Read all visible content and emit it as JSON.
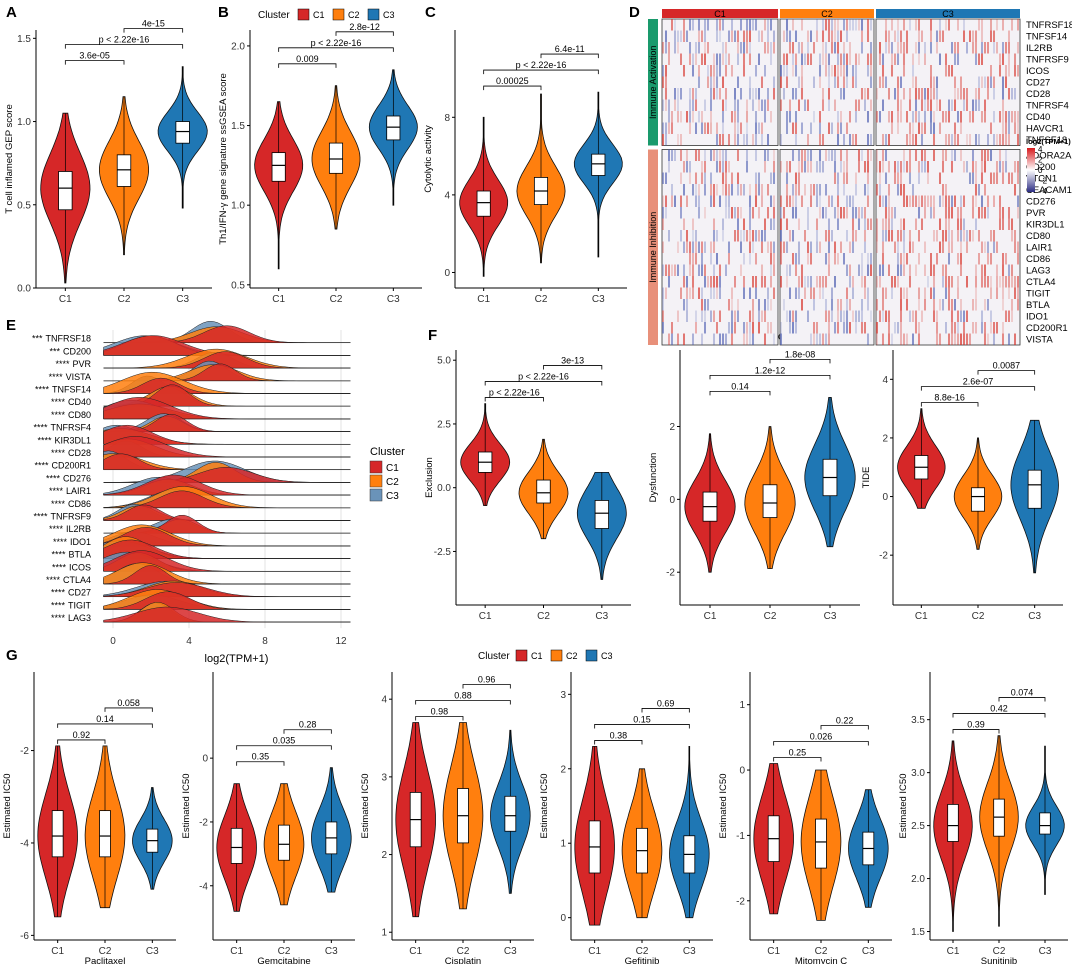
{
  "colors": {
    "C1": "#d62728",
    "C2": "#ff7f0e",
    "C3": "#1f77b4"
  },
  "legend": {
    "title": "Cluster",
    "items": [
      "C1",
      "C2",
      "C3"
    ]
  },
  "panel_labels": {
    "A": "A",
    "B": "B",
    "C": "C",
    "D": "D",
    "E": "E",
    "F": "F",
    "G": "G"
  },
  "chart_data": [
    {
      "panel": "A",
      "type": "violin",
      "ylabel": "T cell inflamed GEP score",
      "ylim": [
        0,
        1.55
      ],
      "yticks": [
        "0.0",
        "0.5",
        "1.0",
        "1.5"
      ],
      "ytick_values": [
        0,
        0.5,
        1,
        1.5
      ],
      "categories": [
        "C1",
        "C2",
        "C3"
      ],
      "groups": [
        {
          "name": "C1",
          "median": 0.6,
          "q1": 0.47,
          "q3": 0.7,
          "min": 0.03,
          "max": 1.05
        },
        {
          "name": "C2",
          "median": 0.71,
          "q1": 0.61,
          "q3": 0.8,
          "min": 0.2,
          "max": 1.15
        },
        {
          "name": "C3",
          "median": 0.94,
          "q1": 0.87,
          "q3": 1.0,
          "min": 0.48,
          "max": 1.33
        }
      ],
      "comparisons": [
        {
          "pair": [
            "C1",
            "C2"
          ],
          "label": "3.6e-05"
        },
        {
          "pair": [
            "C1",
            "C3"
          ],
          "label": "p < 2.22e-16"
        },
        {
          "pair": [
            "C2",
            "C3"
          ],
          "label": "4e-15"
        }
      ]
    },
    {
      "panel": "B",
      "type": "violin",
      "ylabel": "Th1/IFN-γ gene signature ssGSEA score",
      "ylim": [
        0.48,
        2.1
      ],
      "yticks": [
        "0.5",
        "1.0",
        "1.5",
        "2.0"
      ],
      "ytick_values": [
        0.5,
        1,
        1.5,
        2
      ],
      "categories": [
        "C1",
        "C2",
        "C3"
      ],
      "groups": [
        {
          "name": "C1",
          "median": 1.25,
          "q1": 1.15,
          "q3": 1.33,
          "min": 0.6,
          "max": 1.65
        },
        {
          "name": "C2",
          "median": 1.29,
          "q1": 1.2,
          "q3": 1.39,
          "min": 0.85,
          "max": 1.75
        },
        {
          "name": "C3",
          "median": 1.49,
          "q1": 1.41,
          "q3": 1.56,
          "min": 1.0,
          "max": 1.85
        }
      ],
      "comparisons": [
        {
          "pair": [
            "C1",
            "C2"
          ],
          "label": "0.009"
        },
        {
          "pair": [
            "C1",
            "C3"
          ],
          "label": "p < 2.22e-16"
        },
        {
          "pair": [
            "C2",
            "C3"
          ],
          "label": "2.8e-12"
        }
      ]
    },
    {
      "panel": "C",
      "type": "violin",
      "ylabel": "Cytolytic activity",
      "ylim": [
        -0.8,
        12.5
      ],
      "yticks": [
        "0",
        "4",
        "8"
      ],
      "ytick_values": [
        0,
        4,
        8
      ],
      "categories": [
        "C1",
        "C2",
        "C3"
      ],
      "groups": [
        {
          "name": "C1",
          "median": 3.6,
          "q1": 2.9,
          "q3": 4.2,
          "min": -0.2,
          "max": 8.0
        },
        {
          "name": "C2",
          "median": 4.2,
          "q1": 3.5,
          "q3": 4.9,
          "min": 0.5,
          "max": 9.2
        },
        {
          "name": "C3",
          "median": 5.6,
          "q1": 5.0,
          "q3": 6.1,
          "min": 0.8,
          "max": 9.3
        }
      ],
      "comparisons": [
        {
          "pair": [
            "C1",
            "C2"
          ],
          "label": "0.00025"
        },
        {
          "pair": [
            "C1",
            "C3"
          ],
          "label": "p < 2.22e-16"
        },
        {
          "pair": [
            "C2",
            "C3"
          ],
          "label": "6.4e-11"
        }
      ]
    },
    {
      "panel": "D",
      "type": "heatmap",
      "columns": [
        "C1",
        "C2",
        "C3"
      ],
      "row_groups": [
        {
          "name": "Immune Activation",
          "color": "#1a9a6c",
          "genes": [
            "TNFRSF18",
            "TNFSF14",
            "IL2RB",
            "TNFRSF9",
            "ICOS",
            "CD27",
            "CD28",
            "TNFRSF4",
            "CD40",
            "HAVCR1",
            "TNFSF18"
          ]
        },
        {
          "name": "Immune Inhibition",
          "color": "#e8907a",
          "genes": [
            "ADORA2A",
            "CD200",
            "VTCN1",
            "CEACAM1",
            "CD276",
            "PVR",
            "KIR3DL1",
            "CD80",
            "LAIR1",
            "CD86",
            "LAG3",
            "CTLA4",
            "TIGIT",
            "BTLA",
            "IDO1",
            "CD200R1",
            "VISTA"
          ]
        }
      ],
      "legend_title": "log2(TPM+1)",
      "legend_ticks": [
        "4",
        "2",
        "0",
        "−2",
        "−4"
      ]
    },
    {
      "panel": "E",
      "type": "ridgeline",
      "xlabel": "log2(TPM+1)",
      "xticks": [
        "0",
        "4",
        "8",
        "12"
      ],
      "xtick_values": [
        0,
        4,
        8,
        12
      ],
      "xlim": [
        -1,
        13
      ],
      "rows": [
        {
          "sig": "***",
          "gene": "TNFRSF18",
          "peak": 5.5
        },
        {
          "sig": "***",
          "gene": "CD200",
          "peak": 2.0
        },
        {
          "sig": "****",
          "gene": "PVR",
          "peak": 5.5
        },
        {
          "sig": "****",
          "gene": "VISTA",
          "peak": 5.3
        },
        {
          "sig": "****",
          "gene": "TNFSF14",
          "peak": 2.2
        },
        {
          "sig": "****",
          "gene": "CD40",
          "peak": 3.0
        },
        {
          "sig": "****",
          "gene": "CD80",
          "peak": 1.2
        },
        {
          "sig": "****",
          "gene": "TNFRSF4",
          "peak": 2.8
        },
        {
          "sig": "****",
          "gene": "KIR3DL1",
          "peak": 0.3
        },
        {
          "sig": "****",
          "gene": "CD28",
          "peak": 0.8
        },
        {
          "sig": "****",
          "gene": "CD200R1",
          "peak": 0.2
        },
        {
          "sig": "****",
          "gene": "CD276",
          "peak": 5.5
        },
        {
          "sig": "****",
          "gene": "LAIR1",
          "peak": 2.8
        },
        {
          "sig": "****",
          "gene": "CD86",
          "peak": 3.5
        },
        {
          "sig": "****",
          "gene": "TNFRSF9",
          "peak": 1.5
        },
        {
          "sig": "****",
          "gene": "IL2RB",
          "peak": 3.5
        },
        {
          "sig": "****",
          "gene": "IDO1",
          "peak": 1.5
        },
        {
          "sig": "****",
          "gene": "BTLA",
          "peak": 0.8
        },
        {
          "sig": "****",
          "gene": "ICOS",
          "peak": 1.2
        },
        {
          "sig": "****",
          "gene": "CTLA4",
          "peak": 1.5
        },
        {
          "sig": "****",
          "gene": "CD27",
          "peak": 3.0
        },
        {
          "sig": "****",
          "gene": "TIGIT",
          "peak": 2.5
        },
        {
          "sig": "****",
          "gene": "LAG3",
          "peak": 2.5
        }
      ]
    },
    {
      "panel": "F1",
      "type": "violin",
      "ylabel": "Exclusion",
      "ylim": [
        -4.6,
        5.4
      ],
      "yticks": [
        "-2.5",
        "0.0",
        "2.5",
        "5.0"
      ],
      "ytick_values": [
        -2.5,
        0,
        2.5,
        5
      ],
      "categories": [
        "C1",
        "C2",
        "C3"
      ],
      "groups": [
        {
          "name": "C1",
          "median": 1.0,
          "q1": 0.6,
          "q3": 1.4,
          "min": -0.7,
          "max": 3.3
        },
        {
          "name": "C2",
          "median": -0.2,
          "q1": -0.6,
          "q3": 0.3,
          "min": -2.0,
          "max": 1.9
        },
        {
          "name": "C3",
          "median": -1.0,
          "q1": -1.6,
          "q3": -0.5,
          "min": -3.6,
          "max": 0.6
        }
      ],
      "comparisons": [
        {
          "pair": [
            "C1",
            "C2"
          ],
          "label": "p < 2.22e-16"
        },
        {
          "pair": [
            "C1",
            "C3"
          ],
          "label": "p < 2.22e-16"
        },
        {
          "pair": [
            "C2",
            "C3"
          ],
          "label": "3e-13"
        }
      ]
    },
    {
      "panel": "F2",
      "type": "violin",
      "ylabel": "Dysfunction",
      "ylim": [
        -2.9,
        4.1
      ],
      "yticks": [
        "-2",
        "0",
        "2"
      ],
      "ytick_values": [
        -2,
        0,
        2
      ],
      "categories": [
        "C1",
        "C2",
        "C3"
      ],
      "groups": [
        {
          "name": "C1",
          "median": -0.2,
          "q1": -0.6,
          "q3": 0.2,
          "min": -2.0,
          "max": 1.8
        },
        {
          "name": "C2",
          "median": -0.1,
          "q1": -0.5,
          "q3": 0.4,
          "min": -1.9,
          "max": 2.0
        },
        {
          "name": "C3",
          "median": 0.6,
          "q1": 0.1,
          "q3": 1.1,
          "min": -1.3,
          "max": 2.8
        }
      ],
      "comparisons": [
        {
          "pair": [
            "C1",
            "C2"
          ],
          "label": "0.14"
        },
        {
          "pair": [
            "C1",
            "C3"
          ],
          "label": "1.2e-12"
        },
        {
          "pair": [
            "C2",
            "C3"
          ],
          "label": "1.8e-08"
        }
      ]
    },
    {
      "panel": "F3",
      "type": "violin",
      "ylabel": "TIDE",
      "ylim": [
        -3.7,
        5.0
      ],
      "yticks": [
        "-2",
        "0",
        "2",
        "4"
      ],
      "ytick_values": [
        -2,
        0,
        2,
        4
      ],
      "categories": [
        "C1",
        "C2",
        "C3"
      ],
      "groups": [
        {
          "name": "C1",
          "median": 1.0,
          "q1": 0.6,
          "q3": 1.4,
          "min": -0.4,
          "max": 3.0
        },
        {
          "name": "C2",
          "median": 0.0,
          "q1": -0.5,
          "q3": 0.3,
          "min": -1.8,
          "max": 2.0
        },
        {
          "name": "C3",
          "median": 0.4,
          "q1": -0.4,
          "q3": 0.9,
          "min": -2.6,
          "max": 2.6
        }
      ],
      "comparisons": [
        {
          "pair": [
            "C1",
            "C2"
          ],
          "label": "8.8e-16"
        },
        {
          "pair": [
            "C1",
            "C3"
          ],
          "label": "2.6e-07"
        },
        {
          "pair": [
            "C2",
            "C3"
          ],
          "label": "0.0087"
        }
      ]
    },
    {
      "panel": "G1",
      "type": "violin",
      "xlabel": "Paclitaxel",
      "ylabel": "Estimated IC50",
      "ylim": [
        -6.1,
        -0.3
      ],
      "yticks": [
        "-6",
        "-4",
        "-2"
      ],
      "ytick_values": [
        -6,
        -4,
        -2
      ],
      "categories": [
        "C1",
        "C2",
        "C3"
      ],
      "groups": [
        {
          "name": "C1",
          "median": -3.85,
          "q1": -4.3,
          "q3": -3.3,
          "min": -5.6,
          "max": -1.9
        },
        {
          "name": "C2",
          "median": -3.85,
          "q1": -4.3,
          "q3": -3.3,
          "min": -5.4,
          "max": -1.9
        },
        {
          "name": "C3",
          "median": -3.95,
          "q1": -4.2,
          "q3": -3.7,
          "min": -5.0,
          "max": -2.8
        }
      ],
      "comparisons": [
        {
          "pair": [
            "C1",
            "C2"
          ],
          "label": "0.92"
        },
        {
          "pair": [
            "C1",
            "C3"
          ],
          "label": "0.14"
        },
        {
          "pair": [
            "C2",
            "C3"
          ],
          "label": "0.058"
        }
      ]
    },
    {
      "panel": "G2",
      "type": "violin",
      "xlabel": "Gemcitabine",
      "ylabel": "Estimated IC50",
      "ylim": [
        -5.7,
        2.7
      ],
      "yticks": [
        "-4",
        "-2",
        "0"
      ],
      "ytick_values": [
        -4,
        -2,
        0
      ],
      "categories": [
        "C1",
        "C2",
        "C3"
      ],
      "groups": [
        {
          "name": "C1",
          "median": -2.8,
          "q1": -3.3,
          "q3": -2.2,
          "min": -4.8,
          "max": -0.8
        },
        {
          "name": "C2",
          "median": -2.7,
          "q1": -3.2,
          "q3": -2.1,
          "min": -4.6,
          "max": -0.8
        },
        {
          "name": "C3",
          "median": -2.5,
          "q1": -3.0,
          "q3": -2.0,
          "min": -4.2,
          "max": -0.3
        }
      ],
      "comparisons": [
        {
          "pair": [
            "C1",
            "C2"
          ],
          "label": "0.35"
        },
        {
          "pair": [
            "C1",
            "C3"
          ],
          "label": "0.035"
        },
        {
          "pair": [
            "C2",
            "C3"
          ],
          "label": "0.28"
        }
      ]
    },
    {
      "panel": "G3",
      "type": "violin",
      "xlabel": "Cisplatin",
      "ylabel": "Estimated IC50",
      "ylim": [
        0.9,
        4.35
      ],
      "yticks": [
        "1",
        "2",
        "3",
        "4"
      ],
      "ytick_values": [
        1,
        2,
        3,
        4
      ],
      "categories": [
        "C1",
        "C2",
        "C3"
      ],
      "groups": [
        {
          "name": "C1",
          "median": 2.45,
          "q1": 2.1,
          "q3": 2.8,
          "min": 1.2,
          "max": 3.7
        },
        {
          "name": "C2",
          "median": 2.5,
          "q1": 2.15,
          "q3": 2.85,
          "min": 1.3,
          "max": 3.7
        },
        {
          "name": "C3",
          "median": 2.5,
          "q1": 2.3,
          "q3": 2.75,
          "min": 1.5,
          "max": 3.6
        }
      ],
      "comparisons": [
        {
          "pair": [
            "C1",
            "C2"
          ],
          "label": "0.98"
        },
        {
          "pair": [
            "C1",
            "C3"
          ],
          "label": "0.88"
        },
        {
          "pair": [
            "C2",
            "C3"
          ],
          "label": "0.96"
        }
      ]
    },
    {
      "panel": "G4",
      "type": "violin",
      "xlabel": "Gefitinib",
      "ylabel": "Estimated IC50",
      "ylim": [
        -0.3,
        3.3
      ],
      "yticks": [
        "0",
        "1",
        "2",
        "3"
      ],
      "ytick_values": [
        0,
        1,
        2,
        3
      ],
      "categories": [
        "C1",
        "C2",
        "C3"
      ],
      "groups": [
        {
          "name": "C1",
          "median": 0.95,
          "q1": 0.6,
          "q3": 1.3,
          "min": -0.1,
          "max": 2.3
        },
        {
          "name": "C2",
          "median": 0.9,
          "q1": 0.6,
          "q3": 1.2,
          "min": 0.0,
          "max": 2.0
        },
        {
          "name": "C3",
          "median": 0.85,
          "q1": 0.6,
          "q3": 1.1,
          "min": 0.0,
          "max": 2.3
        }
      ],
      "comparisons": [
        {
          "pair": [
            "C1",
            "C2"
          ],
          "label": "0.38"
        },
        {
          "pair": [
            "C1",
            "C3"
          ],
          "label": "0.15"
        },
        {
          "pair": [
            "C2",
            "C3"
          ],
          "label": "0.69"
        }
      ]
    },
    {
      "panel": "G5",
      "type": "violin",
      "xlabel": "Mitomycin C",
      "ylabel": "Estimated IC50",
      "ylim": [
        -2.6,
        1.5
      ],
      "yticks": [
        "-2",
        "-1",
        "0",
        "1"
      ],
      "ytick_values": [
        -2,
        -1,
        0,
        1
      ],
      "categories": [
        "C1",
        "C2",
        "C3"
      ],
      "groups": [
        {
          "name": "C1",
          "median": -1.05,
          "q1": -1.4,
          "q3": -0.7,
          "min": -2.2,
          "max": 0.1
        },
        {
          "name": "C2",
          "median": -1.1,
          "q1": -1.5,
          "q3": -0.75,
          "min": -2.3,
          "max": 0.0
        },
        {
          "name": "C3",
          "median": -1.2,
          "q1": -1.45,
          "q3": -0.95,
          "min": -2.1,
          "max": -0.3
        }
      ],
      "comparisons": [
        {
          "pair": [
            "C1",
            "C2"
          ],
          "label": "0.25"
        },
        {
          "pair": [
            "C1",
            "C3"
          ],
          "label": "0.026"
        },
        {
          "pair": [
            "C2",
            "C3"
          ],
          "label": "0.22"
        }
      ]
    },
    {
      "panel": "G6",
      "type": "violin",
      "xlabel": "Sunitinib",
      "ylabel": "Estimated IC50",
      "ylim": [
        1.42,
        3.95
      ],
      "yticks": [
        "1.5",
        "2.0",
        "2.5",
        "3.0",
        "3.5"
      ],
      "ytick_values": [
        1.5,
        2,
        2.5,
        3,
        3.5
      ],
      "categories": [
        "C1",
        "C2",
        "C3"
      ],
      "groups": [
        {
          "name": "C1",
          "median": 2.5,
          "q1": 2.35,
          "q3": 2.7,
          "min": 1.5,
          "max": 3.3
        },
        {
          "name": "C2",
          "median": 2.58,
          "q1": 2.4,
          "q3": 2.75,
          "min": 1.55,
          "max": 3.35
        },
        {
          "name": "C3",
          "median": 2.5,
          "q1": 2.42,
          "q3": 2.62,
          "min": 1.85,
          "max": 3.25
        }
      ],
      "comparisons": [
        {
          "pair": [
            "C1",
            "C2"
          ],
          "label": "0.39"
        },
        {
          "pair": [
            "C1",
            "C3"
          ],
          "label": "0.42"
        },
        {
          "pair": [
            "C2",
            "C3"
          ],
          "label": "0.074"
        }
      ]
    }
  ]
}
